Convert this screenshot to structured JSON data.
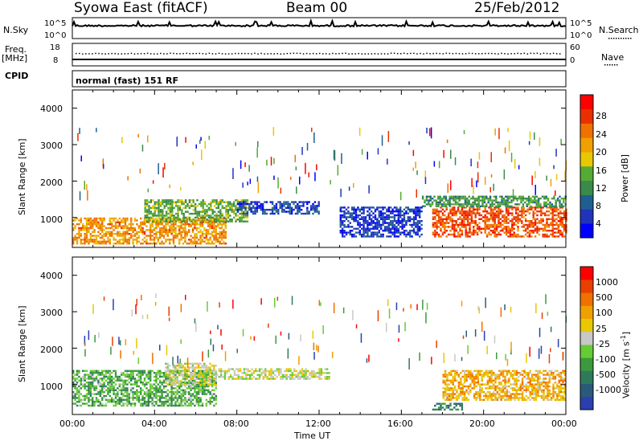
{
  "header": {
    "title": "Syowa East (fitACF)",
    "beam": "Beam 00",
    "date": "25/Feb/2012"
  },
  "params": {
    "nsky_label": "N.Sky",
    "nsearch_label": "N.Search",
    "freq_label_1": "Freq.",
    "freq_label_2": "[MHz]",
    "nave_label": "Nave",
    "cpid_label": "CPID",
    "cpid_value": "normal (fast) 151 RF",
    "noise_ticks": [
      "10^5",
      "10^0"
    ],
    "noise_right_ticks": [
      "10^5",
      "10^0"
    ],
    "freq_ticks": [
      "18",
      "8"
    ],
    "nave_ticks": [
      "60",
      "0"
    ]
  },
  "axes": {
    "ylabel": "Slant Range [km]",
    "xlabel": "Time UT",
    "y_ticks": [
      "4000",
      "3000",
      "2000",
      "1000"
    ],
    "x_ticks": [
      "00:00",
      "04:00",
      "08:00",
      "12:00",
      "16:00",
      "20:00",
      "00:00"
    ]
  },
  "power_scale": {
    "label": "Power [dB]",
    "ticks": [
      "28",
      "24",
      "20",
      "16",
      "12",
      "8",
      "4"
    ],
    "colors": [
      "#0000ff",
      "#2233bb",
      "#1f5f8f",
      "#3a8a4a",
      "#55aa33",
      "#e8c800",
      "#f0a000",
      "#f07000",
      "#e83000",
      "#ff0000"
    ]
  },
  "velocity_scale": {
    "label": "Velocity [m s",
    "label_sup": "-1",
    "label_end": "]",
    "ticks": [
      "1000",
      "500",
      "100",
      "25",
      "-25",
      "-100",
      "-500",
      "-1000"
    ],
    "colors": [
      "#2a40b0",
      "#2a5a7a",
      "#2f7a5a",
      "#3c9a3c",
      "#66cc33",
      "#c8c8c8",
      "#e8c800",
      "#f0a000",
      "#f07000",
      "#e84000",
      "#ff0000"
    ]
  },
  "chart_data": [
    {
      "type": "heatmap",
      "title": "Power",
      "xlabel": "Time UT",
      "ylabel": "Slant Range [km]",
      "x_range_hours": [
        0,
        24
      ],
      "y_range_km": [
        180,
        4500
      ],
      "colorbar": {
        "label": "Power [dB]",
        "range": [
          0,
          32
        ]
      },
      "regions": [
        {
          "t0": 0.0,
          "t1": 7.5,
          "r0": 300,
          "r1": 1000,
          "value": 22
        },
        {
          "t0": 3.5,
          "t1": 8.5,
          "r0": 900,
          "r1": 1500,
          "value": 14
        },
        {
          "t0": 8.0,
          "t1": 12.0,
          "r0": 1100,
          "r1": 1450,
          "value": 6
        },
        {
          "t0": 13.0,
          "t1": 17.0,
          "r0": 500,
          "r1": 1300,
          "value": 5
        },
        {
          "t0": 17.5,
          "t1": 24.0,
          "r0": 500,
          "r1": 1300,
          "value": 26
        },
        {
          "t0": 17.0,
          "t1": 24.0,
          "r0": 1300,
          "r1": 1600,
          "value": 12
        }
      ]
    },
    {
      "type": "heatmap",
      "title": "Velocity",
      "xlabel": "Time UT",
      "ylabel": "Slant Range [km]",
      "x_range_hours": [
        0,
        24
      ],
      "y_range_km": [
        180,
        4500
      ],
      "colorbar": {
        "label": "Velocity [m s-1]",
        "range": [
          -1000,
          1000
        ]
      },
      "regions": [
        {
          "t0": 0.0,
          "t1": 7.0,
          "r0": 400,
          "r1": 1400,
          "value": -300
        },
        {
          "t0": 4.5,
          "t1": 7.0,
          "r0": 1000,
          "r1": 1600,
          "value": 50
        },
        {
          "t0": 7.0,
          "t1": 12.5,
          "r0": 1150,
          "r1": 1450,
          "value": 0
        },
        {
          "t0": 18.0,
          "t1": 24.0,
          "r0": 600,
          "r1": 1400,
          "value": 300
        },
        {
          "t0": 17.5,
          "t1": 19.0,
          "r0": 300,
          "r1": 500,
          "value": -500
        }
      ]
    }
  ]
}
